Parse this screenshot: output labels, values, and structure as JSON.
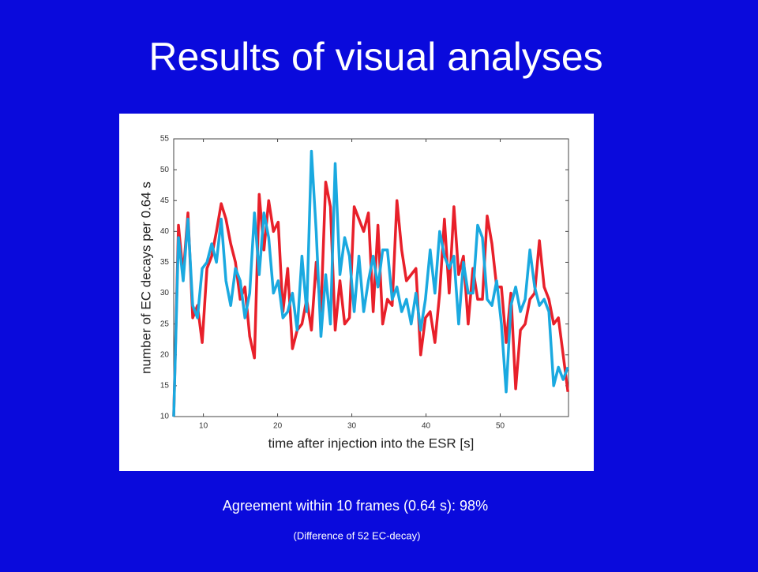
{
  "title": "Results of visual analyses",
  "captions": [
    "Agreement within 10 frames (0.64 s):   98%",
    "(Difference of 52 EC-decay)"
  ],
  "chart_data": {
    "type": "line",
    "xlabel": "time after injection into the ESR [s]",
    "ylabel": "number of EC decays per 0.64 s",
    "x": [
      6.0,
      6.64,
      7.28,
      7.92,
      8.56,
      9.2,
      9.84,
      10.48,
      11.12,
      11.76,
      12.4,
      13.04,
      13.68,
      14.32,
      14.96,
      15.6,
      16.24,
      16.88,
      17.52,
      18.16,
      18.8,
      19.44,
      20.08,
      20.72,
      21.36,
      22.0,
      22.64,
      23.28,
      23.92,
      24.56,
      25.2,
      25.84,
      26.48,
      27.12,
      27.76,
      28.4,
      29.04,
      29.68,
      30.32,
      30.96,
      31.6,
      32.24,
      32.88,
      33.52,
      34.16,
      34.8,
      35.44,
      36.08,
      36.72,
      37.36,
      38.0,
      38.64,
      39.28,
      39.92,
      40.56,
      41.2,
      41.84,
      42.48,
      43.12,
      43.76,
      44.4,
      45.04,
      45.68,
      46.32,
      46.96,
      47.6,
      48.24,
      48.88,
      49.52,
      50.16,
      50.8,
      51.44,
      52.08,
      52.72,
      53.36,
      54.0,
      54.64,
      55.28,
      55.92,
      56.56,
      57.2,
      57.84,
      58.48,
      59.12
    ],
    "series": [
      {
        "color": "#e8202a",
        "values": [
          10,
          41,
          33,
          43,
          26,
          28,
          22,
          34,
          36,
          40,
          44.5,
          42,
          38,
          35,
          29,
          31,
          23,
          19.5,
          46,
          37,
          45,
          40,
          41.5,
          27,
          34,
          21,
          24,
          25,
          29,
          24,
          35,
          27,
          48,
          44,
          24,
          32,
          25,
          26,
          44,
          42,
          40,
          43,
          27,
          41,
          25,
          29,
          28,
          45,
          37,
          32,
          33,
          34,
          20,
          26,
          27,
          22,
          30,
          42,
          30,
          44,
          33,
          36,
          25,
          34,
          29,
          29,
          42.5,
          38,
          31,
          31,
          22,
          30,
          14.5,
          24,
          25,
          29,
          30,
          38.5,
          31,
          29,
          25,
          26,
          20,
          14
        ]
      },
      {
        "color": "#1aa9e0",
        "values": [
          10,
          39,
          32,
          42,
          28,
          26,
          34,
          35,
          38,
          35,
          42,
          32,
          28,
          34,
          32,
          26,
          30,
          43,
          33,
          43,
          39,
          30,
          32,
          26,
          27,
          30,
          24,
          36,
          27,
          53,
          40,
          23,
          33,
          25,
          51,
          33,
          39,
          36,
          27,
          36,
          27,
          32,
          36,
          31,
          37,
          37,
          29,
          31,
          27,
          29,
          25,
          30,
          24,
          29,
          37,
          30,
          40,
          36,
          34,
          36,
          25,
          35,
          30,
          30,
          41,
          39,
          29,
          28,
          32,
          25,
          14,
          28,
          31,
          27,
          29,
          37,
          31,
          28,
          29,
          27,
          15,
          18,
          16,
          18
        ]
      }
    ],
    "xlim": [
      6,
      59.2
    ],
    "ylim": [
      10,
      55
    ],
    "xticks": [
      10,
      20,
      30,
      40,
      50
    ],
    "yticks": [
      10,
      15,
      20,
      25,
      30,
      35,
      40,
      45,
      50,
      55
    ]
  }
}
